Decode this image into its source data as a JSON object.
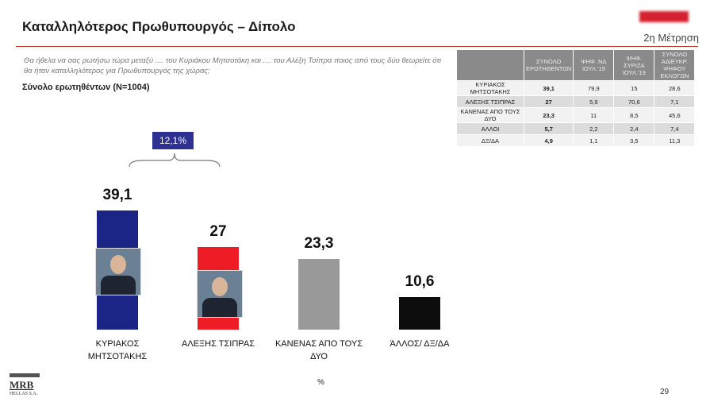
{
  "header": {
    "title": "Καταλληλότερος Πρωθυπουργός – Δίπολο",
    "measurement": "2η Μέτρηση",
    "question": "Θα ήθελα να σας ρωτήσω τώρα μεταξύ .... του Κυριάκου Μητσοτάκη και .... του Αλέξη Τσίπρα ποιος από τους δύο θεωρείτε ότι θα ήταν καταλληλότερος για Πρωθυπουργός της χώρας;",
    "base": "Σύνολο ερωτηθέντων (N=1004)"
  },
  "chart_data": {
    "type": "bar",
    "categories": [
      "ΚΥΡΙΑΚΟΣ ΜΗΤΣΟΤΑΚΗΣ",
      "ΑΛΕΞΗΣ ΤΣΙΠΡΑΣ",
      "ΚΑΝΕΝΑΣ ΑΠΟ ΤΟΥΣ ΔΥΟ",
      "ΆΛΛΟΣ/ ΔΞ/ΔΑ"
    ],
    "values": [
      39.1,
      27,
      23.3,
      10.6
    ],
    "value_labels": [
      "39,1",
      "27",
      "23,3",
      "10,6"
    ],
    "colors": [
      "#1b2585",
      "#ee1c25",
      "#999999",
      "#0d0d0d"
    ],
    "annotation": "12,1%",
    "unit": "%"
  },
  "table": {
    "header": [
      "ΣΥΝΟΛΟ ΕΡΩΤΗΘΕΝΤΩΝ",
      "ΨΗΦ. ΝΔ ΙΟΥΛ.'19",
      "ΨΗΦ. ΣΥΡΙΖΑ ΙΟΥΛ.'19",
      "ΣΥΝΟΛΟ ΑΔΙΕΥΚΡ. ΨΗΦΟΥ ΕΚΛΟΓΩΝ"
    ],
    "rows": [
      [
        "ΚΥΡΙΑΚΟΣ ΜΗΤΣΟΤΑΚΗΣ",
        "39,1",
        "79,9",
        "15",
        "28,6"
      ],
      [
        "ΑΛΕΞΗΣ ΤΣΙΠΡΑΣ",
        "27",
        "5,9",
        "70,6",
        "7,1"
      ],
      [
        "ΚΑΝΕΝΑΣ ΑΠΟ ΤΟΥΣ ΔΥΟ",
        "23,3",
        "11",
        "8,5",
        "45,6"
      ],
      [
        "ΑΛΛΟΙ",
        "5,7",
        "2,2",
        "2,4",
        "7,4"
      ],
      [
        "ΔΞ/ΔΑ",
        "4,9",
        "1,1",
        "3,5",
        "11,3"
      ]
    ]
  },
  "footer": {
    "page": "29",
    "logo": "MRB",
    "logo_sub": "HELLAS S.A."
  }
}
